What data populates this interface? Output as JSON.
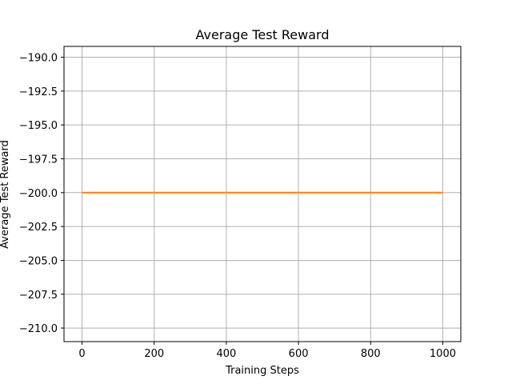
{
  "chart_data": {
    "type": "line",
    "title": "Average Test Reward",
    "xlabel": "Training Steps",
    "ylabel": "Average Test Reward",
    "xlim": [
      -50,
      1050
    ],
    "ylim": [
      -211,
      -189.2
    ],
    "xticks": [
      0,
      200,
      400,
      600,
      800,
      1000
    ],
    "yticks": [
      -190.0,
      -192.5,
      -195.0,
      -197.5,
      -200.0,
      -202.5,
      -205.0,
      -207.5,
      -210.0
    ],
    "yticklabels": [
      "−190.0",
      "−192.5",
      "−195.0",
      "−197.5",
      "−200.0",
      "−202.5",
      "−205.0",
      "−207.5",
      "−210.0"
    ],
    "grid": true,
    "series": [
      {
        "color": "#ff7f0e",
        "x": [
          0,
          1000
        ],
        "y": [
          -200,
          -200
        ]
      }
    ]
  },
  "colors": {
    "grid": "#b0b0b0",
    "axis": "#000000"
  }
}
